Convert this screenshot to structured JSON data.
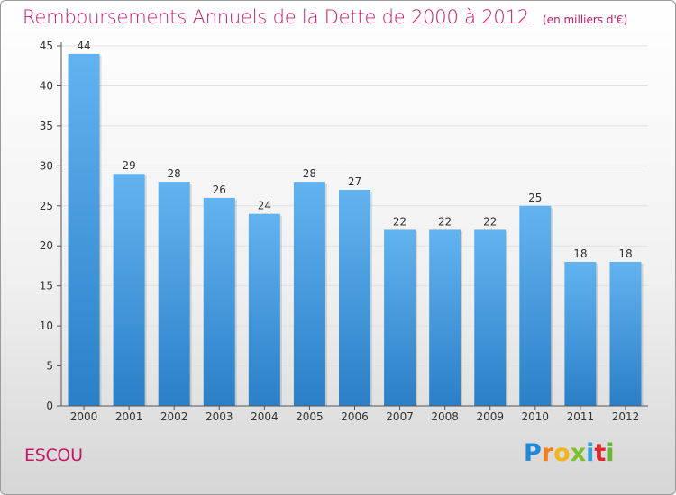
{
  "title": "Remboursements Annuels de la Dette de 2000 à 2012",
  "unit_note": "(en milliers d'€)",
  "commune": "ESCOU",
  "logo": {
    "text": "Proxiti",
    "colors": [
      "#1e88d9",
      "#f07e1b",
      "#f2b51b",
      "#7fbf2a",
      "#2ea1e0",
      "#e0262f",
      "#69b82d"
    ]
  },
  "colors": {
    "title": "#c4196a",
    "bar_light": "#62b3f0",
    "bar_dark": "#2a7fc7"
  },
  "chart_data": {
    "type": "bar",
    "categories": [
      "2000",
      "2001",
      "2002",
      "2003",
      "2004",
      "2005",
      "2006",
      "2007",
      "2008",
      "2009",
      "2010",
      "2011",
      "2012"
    ],
    "values": [
      44,
      29,
      28,
      26,
      24,
      28,
      27,
      22,
      22,
      22,
      25,
      18,
      18
    ],
    "ylim": [
      0,
      45
    ],
    "yticks": [
      0,
      5,
      10,
      15,
      20,
      25,
      30,
      35,
      40,
      45
    ],
    "grid": true,
    "legend": "none"
  }
}
